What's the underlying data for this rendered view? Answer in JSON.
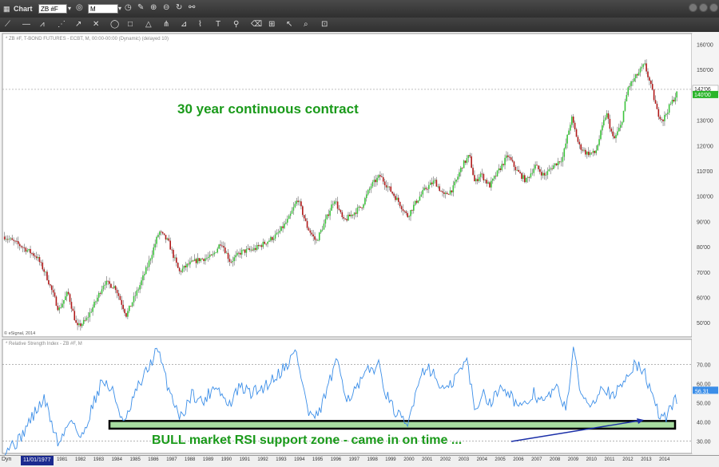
{
  "window": {
    "title": "Chart"
  },
  "toolbar": {
    "symbol": "ZB #F",
    "interval": "M",
    "tools": [
      "line-tool-icon",
      "ray-tool-icon",
      "fib-tool-icon",
      "channel-tool-icon",
      "arrow-tool-icon",
      "cross-tool-icon",
      "ellipse-tool-icon",
      "rect-tool-icon",
      "triangle-tool-icon",
      "pitchfork-tool-icon",
      "gann-tool-icon",
      "cycle-tool-icon",
      "text-tool-icon",
      "marker-tool-icon",
      "eraser-tool-icon",
      "grid-tool-icon",
      "cursor-tool-icon",
      "zoom-tool-icon",
      "lock-tool-icon"
    ]
  },
  "main_header": "* ZB #F, T-BOND FUTURES - ECBT, M, 00:00-00:00 (Dynamic) (delayed 10)",
  "copyright": "© eSignal, 2014",
  "rsi_header": "* Relative Strength Index - ZB #F, M",
  "annotations": {
    "main": "30 year continuous contract",
    "rsi": "BULL market RSI support zone - came in on time ..."
  },
  "bottom": {
    "left_label": "Dyn",
    "date_box": "11/01/1977"
  },
  "colors": {
    "up": "#3cc43c",
    "down": "#b01818",
    "rsi_line": "#3b8ee8",
    "zone_fill": "#a8dca0",
    "annotation_text": "#1a9a1a",
    "arrow": "#1b2fa8",
    "last_price_box": "#2ab52a"
  },
  "chart_data": [
    {
      "type": "candlestick",
      "series_name": "ZB #F",
      "x_tick_labels": [
        "1981",
        "1982",
        "1983",
        "1984",
        "1985",
        "1986",
        "1987",
        "1988",
        "1989",
        "1990",
        "1991",
        "1992",
        "1993",
        "1994",
        "1995",
        "1996",
        "1997",
        "1998",
        "1999",
        "2000",
        "2001",
        "2002",
        "2003",
        "2004",
        "2005",
        "2006",
        "2007",
        "2008",
        "2009",
        "2010",
        "2011",
        "2012",
        "2013",
        "2014"
      ],
      "y_ticks": [
        50,
        60,
        70,
        80,
        90,
        100,
        110,
        120,
        130,
        140,
        150,
        160
      ],
      "y_tick_labels": [
        "50'00",
        "60'00",
        "70'00",
        "80'00",
        "90'00",
        "100'00",
        "110'00",
        "120'00",
        "130'00",
        "140'00",
        "150'00",
        "160'00"
      ],
      "ylim": [
        45,
        163
      ],
      "xlim": [
        1977.8,
        2015.4
      ],
      "reference_line": 142.2,
      "price_labels": [
        "142'06",
        "140'00"
      ],
      "anchors": [
        [
          1977.83,
          84
        ],
        [
          1978.8,
          80
        ],
        [
          1979.6,
          76
        ],
        [
          1980.1,
          69
        ],
        [
          1980.8,
          55
        ],
        [
          1981.3,
          62
        ],
        [
          1981.8,
          48
        ],
        [
          1982.3,
          51
        ],
        [
          1982.8,
          58
        ],
        [
          1983.3,
          66
        ],
        [
          1983.9,
          64
        ],
        [
          1984.5,
          53
        ],
        [
          1985.2,
          64
        ],
        [
          1985.7,
          73
        ],
        [
          1986.3,
          86
        ],
        [
          1986.8,
          82
        ],
        [
          1987.4,
          70
        ],
        [
          1987.9,
          73
        ],
        [
          1988.5,
          75
        ],
        [
          1989.2,
          76
        ],
        [
          1989.7,
          82
        ],
        [
          1990.2,
          74
        ],
        [
          1990.8,
          78
        ],
        [
          1991.5,
          79
        ],
        [
          1992.2,
          82
        ],
        [
          1992.8,
          85
        ],
        [
          1993.4,
          91
        ],
        [
          1993.9,
          99
        ],
        [
          1994.4,
          88
        ],
        [
          1994.9,
          82
        ],
        [
          1995.4,
          90
        ],
        [
          1995.9,
          99
        ],
        [
          1996.4,
          90
        ],
        [
          1996.9,
          93
        ],
        [
          1997.4,
          96
        ],
        [
          1997.9,
          104
        ],
        [
          1998.4,
          108
        ],
        [
          1998.9,
          103
        ],
        [
          1999.4,
          98
        ],
        [
          1999.9,
          92
        ],
        [
          2000.4,
          98
        ],
        [
          2000.9,
          103
        ],
        [
          2001.4,
          106
        ],
        [
          2001.9,
          100
        ],
        [
          2002.4,
          103
        ],
        [
          2002.9,
          112
        ],
        [
          2003.3,
          116
        ],
        [
          2003.6,
          105
        ],
        [
          2003.9,
          109
        ],
        [
          2004.4,
          104
        ],
        [
          2004.9,
          110
        ],
        [
          2005.4,
          116
        ],
        [
          2005.9,
          110
        ],
        [
          2006.4,
          106
        ],
        [
          2006.9,
          112
        ],
        [
          2007.4,
          108
        ],
        [
          2007.9,
          112
        ],
        [
          2008.4,
          115
        ],
        [
          2008.9,
          131
        ],
        [
          2009.3,
          120
        ],
        [
          2009.7,
          117
        ],
        [
          2010.2,
          117
        ],
        [
          2010.8,
          133
        ],
        [
          2011.2,
          122
        ],
        [
          2011.6,
          128
        ],
        [
          2012.0,
          143
        ],
        [
          2012.5,
          148
        ],
        [
          2012.9,
          152
        ],
        [
          2013.3,
          142
        ],
        [
          2013.6,
          133
        ],
        [
          2013.9,
          130
        ],
        [
          2014.3,
          136
        ],
        [
          2014.7,
          141
        ]
      ]
    },
    {
      "type": "line",
      "series_name": "Relative Strength Index",
      "y_ticks": [
        30,
        40,
        50,
        60,
        70
      ],
      "y_tick_labels": [
        "30.00",
        "40.00",
        "50.00",
        "60.00",
        "70.00"
      ],
      "ylim": [
        24,
        81
      ],
      "last_value_label": "56.31",
      "support_zone": [
        36.5,
        40.5
      ],
      "anchors": [
        [
          1977.83,
          26
        ],
        [
          1978.6,
          30
        ],
        [
          1979.3,
          42
        ],
        [
          1980.0,
          52
        ],
        [
          1980.8,
          28
        ],
        [
          1981.5,
          43
        ],
        [
          1982.0,
          30
        ],
        [
          1982.7,
          50
        ],
        [
          1983.2,
          62
        ],
        [
          1983.8,
          55
        ],
        [
          1984.4,
          38
        ],
        [
          1985.0,
          55
        ],
        [
          1985.6,
          66
        ],
        [
          1986.2,
          78
        ],
        [
          1986.8,
          58
        ],
        [
          1987.5,
          42
        ],
        [
          1988.1,
          55
        ],
        [
          1988.7,
          50
        ],
        [
          1989.4,
          60
        ],
        [
          1990.1,
          48
        ],
        [
          1990.7,
          58
        ],
        [
          1991.4,
          55
        ],
        [
          1992.0,
          58
        ],
        [
          1992.7,
          64
        ],
        [
          1993.3,
          70
        ],
        [
          1993.8,
          77
        ],
        [
          1994.5,
          44
        ],
        [
          1995.0,
          42
        ],
        [
          1995.6,
          60
        ],
        [
          1996.1,
          72
        ],
        [
          1996.6,
          52
        ],
        [
          1997.2,
          58
        ],
        [
          1997.7,
          66
        ],
        [
          1998.3,
          70
        ],
        [
          1998.9,
          50
        ],
        [
          1999.5,
          42
        ],
        [
          1999.9,
          37
        ],
        [
          2000.5,
          62
        ],
        [
          2001.0,
          70
        ],
        [
          2001.6,
          60
        ],
        [
          2002.1,
          56
        ],
        [
          2002.7,
          66
        ],
        [
          2003.2,
          72
        ],
        [
          2003.6,
          44
        ],
        [
          2004.0,
          56
        ],
        [
          2004.5,
          50
        ],
        [
          2005.1,
          60
        ],
        [
          2005.7,
          52
        ],
        [
          2006.2,
          46
        ],
        [
          2006.8,
          55
        ],
        [
          2007.4,
          50
        ],
        [
          2008.0,
          58
        ],
        [
          2008.6,
          48
        ],
        [
          2009.0,
          76
        ],
        [
          2009.5,
          52
        ],
        [
          2010.0,
          50
        ],
        [
          2010.6,
          60
        ],
        [
          2011.2,
          52
        ],
        [
          2011.8,
          62
        ],
        [
          2012.3,
          70
        ],
        [
          2012.9,
          66
        ],
        [
          2013.4,
          50
        ],
        [
          2013.8,
          42
        ],
        [
          2014.1,
          43
        ],
        [
          2014.5,
          50
        ],
        [
          2014.9,
          56
        ]
      ]
    }
  ]
}
